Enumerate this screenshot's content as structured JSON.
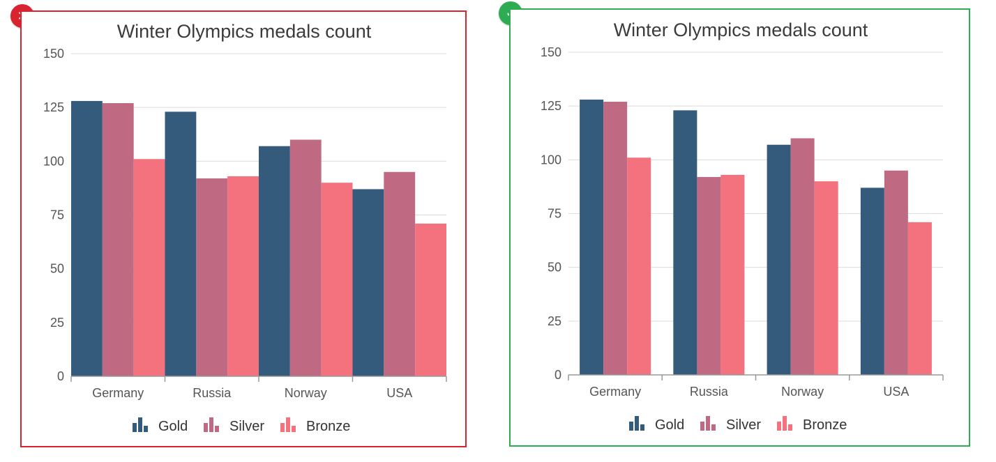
{
  "panels": [
    {
      "status": "incorrect",
      "status_icon": "cross-icon",
      "border_color": "#d9232e",
      "badge_glyph": "✕"
    },
    {
      "status": "correct",
      "status_icon": "checkmark-icon",
      "border_color": "#2eac53",
      "badge_glyph": "✓"
    }
  ],
  "chart_data": [
    {
      "type": "bar",
      "title": "Winter Olympics medals count",
      "categories": [
        "Germany",
        "Russia",
        "Norway",
        "USA"
      ],
      "series": [
        {
          "name": "Gold",
          "color": "#345b7c",
          "values": [
            128,
            123,
            107,
            87
          ]
        },
        {
          "name": "Silver",
          "color": "#bf6a82",
          "values": [
            127,
            92,
            110,
            95
          ]
        },
        {
          "name": "Bronze",
          "color": "#f4717e",
          "values": [
            101,
            93,
            90,
            71
          ]
        }
      ],
      "yticks": [
        "0",
        "25",
        "50",
        "75",
        "100",
        "125",
        "150"
      ],
      "ylim": [
        0,
        150
      ],
      "grid": true,
      "legend": "bottom",
      "bar_group_padding": "none"
    },
    {
      "type": "bar",
      "title": "Winter Olympics medals count",
      "categories": [
        "Germany",
        "Russia",
        "Norway",
        "USA"
      ],
      "series": [
        {
          "name": "Gold",
          "color": "#345b7c",
          "values": [
            128,
            123,
            107,
            87
          ]
        },
        {
          "name": "Silver",
          "color": "#bf6a82",
          "values": [
            127,
            92,
            110,
            95
          ]
        },
        {
          "name": "Bronze",
          "color": "#f4717e",
          "values": [
            101,
            93,
            90,
            71
          ]
        }
      ],
      "yticks": [
        "0",
        "25",
        "50",
        "75",
        "100",
        "125",
        "150"
      ],
      "ylim": [
        0,
        150
      ],
      "grid": true,
      "legend": "bottom",
      "bar_group_padding": "spaced"
    }
  ]
}
